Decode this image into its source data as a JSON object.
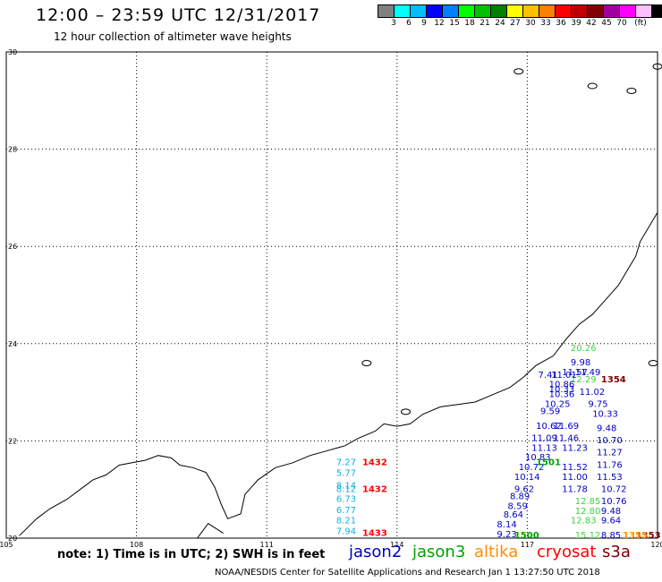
{
  "header": {
    "title": "12:00 – 23:59 UTC 12/31/2017",
    "subtitle": "12 hour collection of altimeter wave heights"
  },
  "colorbar": {
    "colors": [
      "#808080",
      "#00ffff",
      "#00bfff",
      "#0000ff",
      "#0080ff",
      "#00ff00",
      "#00c000",
      "#008000",
      "#ffff00",
      "#ffc000",
      "#ff8000",
      "#ff0000",
      "#c00000",
      "#800000",
      "#a000a0",
      "#ff00ff",
      "#ffc0ff",
      "#000000"
    ],
    "labels": [
      "3",
      "6",
      "9",
      "12",
      "15",
      "18",
      "21",
      "24",
      "27",
      "30",
      "33",
      "36",
      "39",
      "42",
      "45",
      "70",
      "(ft)"
    ]
  },
  "axes": {
    "x_ticks": [
      "105",
      "108",
      "111",
      "114",
      "117",
      "120"
    ],
    "y_ticks": [
      "30",
      "28",
      "26",
      "24",
      "22",
      "20"
    ]
  },
  "satellite_colors": {
    "jason2": "#0000c8",
    "jason3": "#00a000",
    "altika": "#ff8c00",
    "cryosat": "#ff0000",
    "s3a": "#800000",
    "swh_light": "#10b0e0",
    "swh_green": "#40d040"
  },
  "time_labels": [
    {
      "text": "1432",
      "lon": 113.2,
      "lat": 21.5,
      "sat": "cryosat"
    },
    {
      "text": "1432",
      "lon": 113.2,
      "lat": 20.95,
      "sat": "cryosat"
    },
    {
      "text": "1433",
      "lon": 113.2,
      "lat": 20.05,
      "sat": "cryosat"
    },
    {
      "text": "1354",
      "lon": 118.7,
      "lat": 23.2,
      "sat": "s3a"
    },
    {
      "text": "1500",
      "lon": 116.7,
      "lat": 20.0,
      "sat": "jason3"
    },
    {
      "text": "1501",
      "lon": 117.2,
      "lat": 21.5,
      "sat": "jason3"
    },
    {
      "text": "1353",
      "lon": 119.5,
      "lat": 20.0,
      "sat": "s3a"
    },
    {
      "text": "1355",
      "lon": 119.2,
      "lat": 20.0,
      "sat": "altika"
    }
  ],
  "track_cryosat": [
    {
      "text": "7.27",
      "lat": 21.5
    },
    {
      "text": "5.77",
      "lat": 21.28
    },
    {
      "text": "8.14",
      "lat": 21.02
    },
    {
      "text": "8.12",
      "lat": 20.95
    },
    {
      "text": "6.73",
      "lat": 20.75
    },
    {
      "text": "6.77",
      "lat": 20.52
    },
    {
      "text": "8.21",
      "lat": 20.3
    },
    {
      "text": "7.94",
      "lat": 20.08
    }
  ],
  "track_jason3": [
    {
      "text": "20.26",
      "lon": 118.0,
      "lat": 23.85
    },
    {
      "text": "12.29",
      "lon": 118.0,
      "lat": 23.2
    },
    {
      "text": "12.85",
      "lon": 118.1,
      "lat": 20.7
    },
    {
      "text": "12.80",
      "lon": 118.1,
      "lat": 20.5
    },
    {
      "text": "12.83",
      "lon": 118.0,
      "lat": 20.3
    },
    {
      "text": "15.12",
      "lon": 118.1,
      "lat": 20.0
    }
  ],
  "track_jason2_a": [
    {
      "text": "7.41",
      "lon": 117.25,
      "lat": 23.3
    },
    {
      "text": "11.01",
      "lon": 117.55,
      "lat": 23.3
    },
    {
      "text": "10.86",
      "lon": 117.5,
      "lat": 23.1
    },
    {
      "text": "10.33",
      "lon": 117.5,
      "lat": 23.0
    },
    {
      "text": "10.36",
      "lon": 117.5,
      "lat": 22.9
    },
    {
      "text": "10.25",
      "lon": 117.4,
      "lat": 22.7
    },
    {
      "text": "9.59",
      "lon": 117.3,
      "lat": 22.55
    },
    {
      "text": "10.62",
      "lon": 117.2,
      "lat": 22.25
    },
    {
      "text": "11.09",
      "lon": 117.1,
      "lat": 22.0
    },
    {
      "text": "11.13",
      "lon": 117.1,
      "lat": 21.8
    },
    {
      "text": "10.83",
      "lon": 116.95,
      "lat": 21.6
    },
    {
      "text": "10.72",
      "lon": 116.8,
      "lat": 21.4
    },
    {
      "text": "10.14",
      "lon": 116.7,
      "lat": 21.2
    },
    {
      "text": "9.62",
      "lon": 116.7,
      "lat": 20.95
    },
    {
      "text": "8.89",
      "lon": 116.6,
      "lat": 20.8
    },
    {
      "text": "8.59",
      "lon": 116.55,
      "lat": 20.6
    },
    {
      "text": "8.64",
      "lon": 116.45,
      "lat": 20.42
    },
    {
      "text": "8.14",
      "lon": 116.3,
      "lat": 20.22
    },
    {
      "text": "9.23",
      "lon": 116.3,
      "lat": 20.02
    }
  ],
  "track_jason2_b": [
    {
      "text": "9.98",
      "lon": 118.0,
      "lat": 23.55
    },
    {
      "text": "11.57",
      "lon": 117.8,
      "lat": 23.35
    },
    {
      "text": "11.49",
      "lon": 118.1,
      "lat": 23.35
    },
    {
      "text": "11.02",
      "lon": 118.2,
      "lat": 22.95
    },
    {
      "text": "9.75",
      "lon": 118.4,
      "lat": 22.7
    },
    {
      "text": "10.33",
      "lon": 118.5,
      "lat": 22.5
    },
    {
      "text": "9.48",
      "lon": 118.6,
      "lat": 22.2
    },
    {
      "text": "10.70",
      "lon": 118.6,
      "lat": 21.95
    },
    {
      "text": "11.27",
      "lon": 118.6,
      "lat": 21.7
    },
    {
      "text": "11.76",
      "lon": 118.6,
      "lat": 21.45
    },
    {
      "text": "11.53",
      "lon": 118.6,
      "lat": 21.2
    },
    {
      "text": "10.72",
      "lon": 118.7,
      "lat": 20.95
    },
    {
      "text": "9.48",
      "lon": 118.7,
      "lat": 20.5
    },
    {
      "text": "9.64",
      "lon": 118.7,
      "lat": 20.3
    },
    {
      "text": "8.85",
      "lon": 118.7,
      "lat": 20.0
    },
    {
      "text": "11.69",
      "lon": 117.6,
      "lat": 22.25
    },
    {
      "text": "11.46",
      "lon": 117.6,
      "lat": 22.0
    },
    {
      "text": "11.23",
      "lon": 117.8,
      "lat": 21.8
    },
    {
      "text": "11.52",
      "lon": 117.8,
      "lat": 21.4
    },
    {
      "text": "11.00",
      "lon": 117.8,
      "lat": 21.2
    },
    {
      "text": "11.78",
      "lon": 117.8,
      "lat": 20.95
    },
    {
      "text": "10.76",
      "lon": 118.7,
      "lat": 20.7
    }
  ],
  "footer": {
    "note": "note: 1) Time is in UTC; 2) SWH is in feet",
    "legend": [
      "jason2",
      "jason3",
      "altika",
      "cryosat",
      "s3a"
    ],
    "credit": "NOAA/NESDIS Center for Satellite Applications and Research   Jan  1 13:27:50 UTC 2018"
  }
}
